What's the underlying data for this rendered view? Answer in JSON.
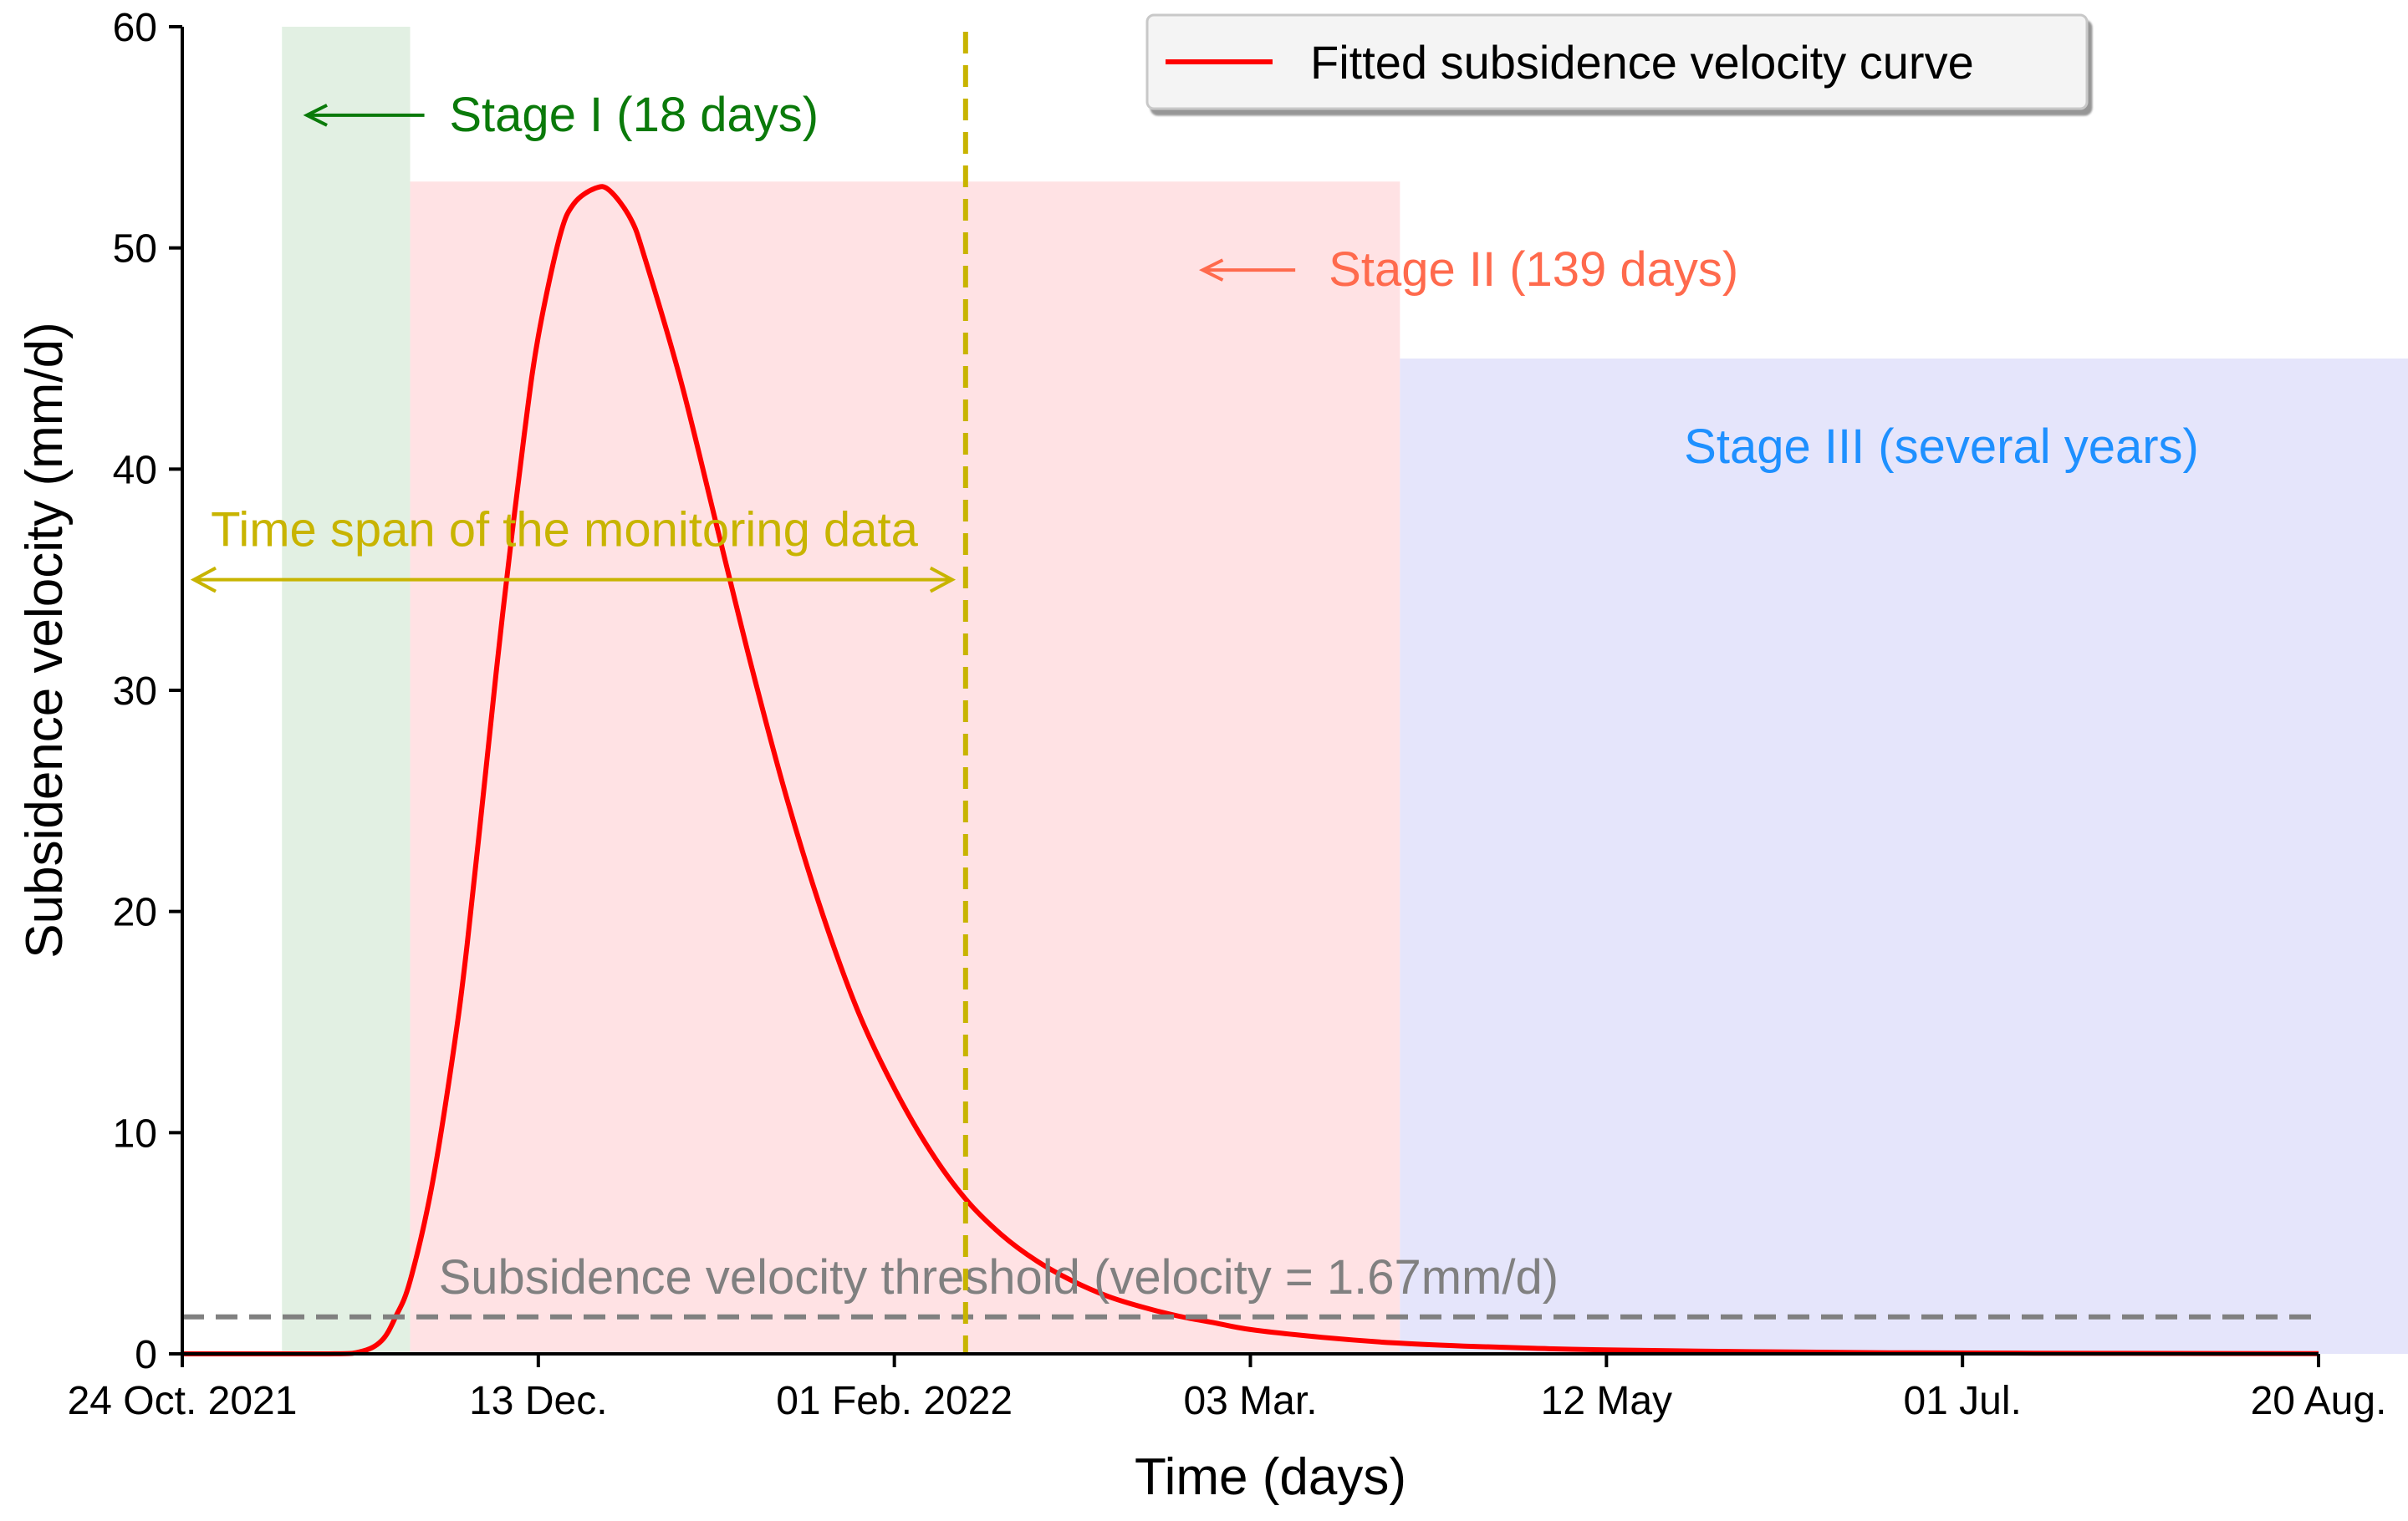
{
  "chart_data": {
    "type": "line",
    "title": "",
    "xlabel": "Time (days)",
    "ylabel": "Subsidence velocity (mm/d)",
    "xlim": [
      0,
      300
    ],
    "ylim": [
      0,
      60
    ],
    "y_ticks": [
      0,
      10,
      20,
      30,
      40,
      50,
      60
    ],
    "x_ticks": [
      {
        "day": 0,
        "label": "24 Oct. 2021"
      },
      {
        "day": 50,
        "label": "13 Dec."
      },
      {
        "day": 100,
        "label": "01 Feb. 2022"
      },
      {
        "day": 150,
        "label": "03 Mar."
      },
      {
        "day": 200,
        "label": "12 May"
      },
      {
        "day": 250,
        "label": "01 Jul."
      },
      {
        "day": 300,
        "label": "20 Aug."
      }
    ],
    "series": [
      {
        "name": "Fitted subsidence velocity curve",
        "color": "#ff0000",
        "x": [
          0,
          20,
          25,
          28,
          30,
          32,
          35,
          38,
          40,
          43,
          45,
          48,
          50,
          53,
          55,
          58,
          60,
          63,
          65,
          70,
          75,
          80,
          85,
          90,
          95,
          100,
          105,
          110,
          115,
          120,
          125,
          130,
          135,
          140,
          145,
          150,
          160,
          170,
          180,
          190,
          200,
          220,
          240,
          260,
          280,
          300
        ],
        "y": [
          0,
          0,
          0.1,
          0.6,
          1.7,
          3.3,
          7.5,
          13.5,
          18.5,
          27.5,
          33.5,
          41.5,
          46.0,
          50.5,
          52.0,
          52.7,
          52.6,
          51.3,
          49.5,
          44.0,
          37.5,
          31.0,
          25.0,
          19.8,
          15.4,
          12.0,
          9.2,
          7.0,
          5.4,
          4.2,
          3.3,
          2.6,
          2.1,
          1.7,
          1.4,
          1.1,
          0.75,
          0.5,
          0.35,
          0.25,
          0.18,
          0.1,
          0.05,
          0.03,
          0.02,
          0.01
        ]
      }
    ],
    "reference_lines": {
      "threshold": {
        "value": 1.67,
        "label": "Subsidence velocity threshold (velocity = 1.67mm/d)",
        "color": "#808080"
      },
      "monitoring_end": {
        "day": 110,
        "color": "#c8b400"
      }
    },
    "stages": [
      {
        "name": "Stage I (18 days)",
        "start": 14,
        "end": 32,
        "top": 60,
        "fill": "#e2f0e3",
        "text_color": "#0a7a0a"
      },
      {
        "name": "Stage II (139 days)",
        "start": 32,
        "end": 171,
        "top": 53,
        "fill": "#ffe2e4",
        "text_color": "#ff6a4d"
      },
      {
        "name": "Stage III (several years)",
        "start": 171,
        "end": 314,
        "top": 45,
        "fill": "#e5e5fb",
        "text_color": "#1e90ff"
      }
    ],
    "annotations": {
      "time_span_label": "Time span of the monitoring data",
      "time_span_color": "#c8b400",
      "time_span_range": [
        0,
        110
      ],
      "time_span_y": 35
    },
    "legend": {
      "entry": "Fitted subsidence velocity curve",
      "position": "top-right"
    }
  }
}
